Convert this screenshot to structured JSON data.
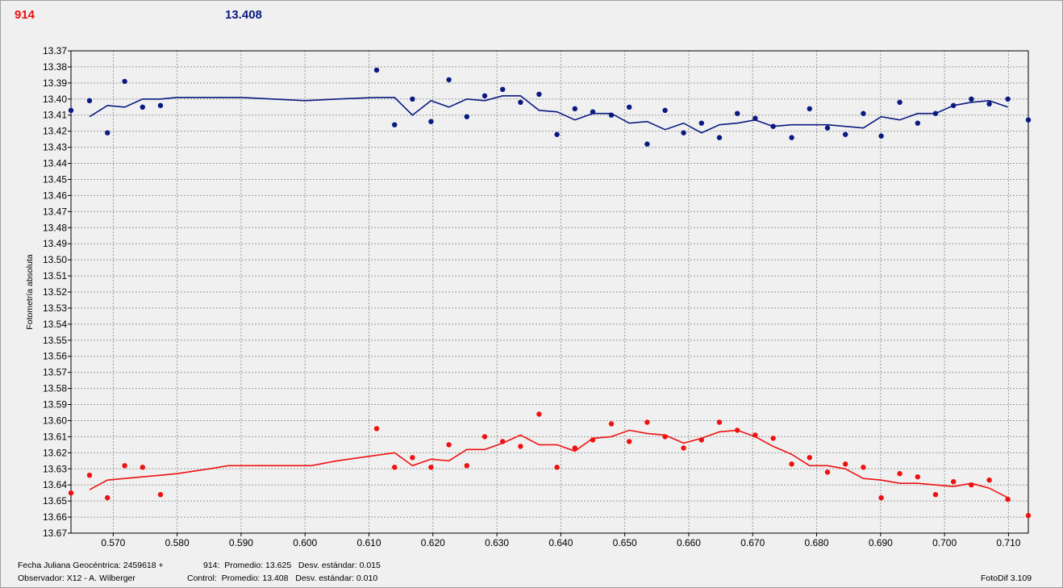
{
  "header": {
    "target_label": "914",
    "control_value": "13.408"
  },
  "footer": {
    "date_label": "Fecha Juliana Geocéntrica: 2459618 +",
    "observer_label": "Observador: X12 - A. Wilberger",
    "target_stats": "914:  Promedio: 13.625   Desv. estándar: 0.015",
    "control_stats": "Control:  Promedio: 13.408   Desv. estándar: 0.010",
    "software": "FotoDif 3.109"
  },
  "colors": {
    "target": "#ee1111",
    "control": "#0a1a80",
    "grid": "#9a9a9a",
    "plot_bg": "#f0f0f0"
  },
  "chart_data": {
    "type": "scatter",
    "ylabel": "Fotometría absoluta",
    "y_inverted": true,
    "ylim": [
      13.37,
      13.67
    ],
    "xlim": [
      0.5634,
      0.7131
    ],
    "x_ticks": [
      "0.570",
      "0.580",
      "0.590",
      "0.600",
      "0.610",
      "0.620",
      "0.630",
      "0.640",
      "0.650",
      "0.660",
      "0.670",
      "0.680",
      "0.690",
      "0.700",
      "0.710"
    ],
    "y_ticks": [
      "13.37",
      "13.38",
      "13.39",
      "13.40",
      "13.41",
      "13.42",
      "13.43",
      "13.44",
      "13.45",
      "13.46",
      "13.47",
      "13.48",
      "13.49",
      "13.50",
      "13.51",
      "13.52",
      "13.53",
      "13.54",
      "13.55",
      "13.56",
      "13.57",
      "13.58",
      "13.59",
      "13.60",
      "13.61",
      "13.62",
      "13.63",
      "13.64",
      "13.65",
      "13.66",
      "13.67"
    ],
    "grid": true,
    "series": [
      {
        "kind": "control",
        "points": [
          [
            0.5634,
            13.407
          ],
          [
            0.5663,
            13.401
          ],
          [
            0.5691,
            13.421
          ],
          [
            0.5718,
            13.389
          ],
          [
            0.5746,
            13.405
          ],
          [
            0.5774,
            13.404
          ],
          [
            0.6112,
            13.382
          ],
          [
            0.614,
            13.416
          ],
          [
            0.6168,
            13.4
          ],
          [
            0.6197,
            13.414
          ],
          [
            0.6225,
            13.388
          ],
          [
            0.6253,
            13.411
          ],
          [
            0.6281,
            13.398
          ],
          [
            0.6309,
            13.394
          ],
          [
            0.6337,
            13.402
          ],
          [
            0.6366,
            13.397
          ],
          [
            0.6394,
            13.422
          ],
          [
            0.6422,
            13.406
          ],
          [
            0.645,
            13.408
          ],
          [
            0.6479,
            13.41
          ],
          [
            0.6507,
            13.405
          ],
          [
            0.6535,
            13.428
          ],
          [
            0.6563,
            13.407
          ],
          [
            0.6592,
            13.421
          ],
          [
            0.662,
            13.415
          ],
          [
            0.6648,
            13.424
          ],
          [
            0.6676,
            13.409
          ],
          [
            0.6704,
            13.412
          ],
          [
            0.6732,
            13.417
          ],
          [
            0.6761,
            13.424
          ],
          [
            0.6789,
            13.406
          ],
          [
            0.6817,
            13.418
          ],
          [
            0.6845,
            13.422
          ],
          [
            0.6873,
            13.409
          ],
          [
            0.6901,
            13.423
          ],
          [
            0.693,
            13.402
          ],
          [
            0.6958,
            13.415
          ],
          [
            0.6986,
            13.409
          ],
          [
            0.7014,
            13.404
          ],
          [
            0.7042,
            13.4
          ],
          [
            0.707,
            13.403
          ],
          [
            0.7099,
            13.4
          ],
          [
            0.7131,
            13.413
          ]
        ],
        "trend": [
          [
            0.5663,
            13.411
          ],
          [
            0.5691,
            13.404
          ],
          [
            0.5718,
            13.405
          ],
          [
            0.5746,
            13.4
          ],
          [
            0.5774,
            13.4
          ],
          [
            0.58,
            13.399
          ],
          [
            0.585,
            13.399
          ],
          [
            0.59,
            13.399
          ],
          [
            0.6,
            13.401
          ],
          [
            0.605,
            13.4
          ],
          [
            0.6112,
            13.399
          ],
          [
            0.614,
            13.399
          ],
          [
            0.6168,
            13.41
          ],
          [
            0.6197,
            13.401
          ],
          [
            0.6225,
            13.405
          ],
          [
            0.6253,
            13.4
          ],
          [
            0.6281,
            13.401
          ],
          [
            0.6309,
            13.398
          ],
          [
            0.6337,
            13.398
          ],
          [
            0.6366,
            13.407
          ],
          [
            0.6394,
            13.408
          ],
          [
            0.6422,
            13.413
          ],
          [
            0.645,
            13.409
          ],
          [
            0.6479,
            13.409
          ],
          [
            0.6507,
            13.415
          ],
          [
            0.6535,
            13.414
          ],
          [
            0.6563,
            13.419
          ],
          [
            0.6592,
            13.415
          ],
          [
            0.662,
            13.421
          ],
          [
            0.6648,
            13.416
          ],
          [
            0.6676,
            13.415
          ],
          [
            0.6704,
            13.413
          ],
          [
            0.6732,
            13.417
          ],
          [
            0.6761,
            13.416
          ],
          [
            0.6789,
            13.416
          ],
          [
            0.6817,
            13.416
          ],
          [
            0.6845,
            13.417
          ],
          [
            0.6873,
            13.418
          ],
          [
            0.6901,
            13.411
          ],
          [
            0.693,
            13.413
          ],
          [
            0.6958,
            13.409
          ],
          [
            0.6986,
            13.409
          ],
          [
            0.7014,
            13.404
          ],
          [
            0.7042,
            13.402
          ],
          [
            0.707,
            13.401
          ],
          [
            0.7099,
            13.405
          ]
        ]
      },
      {
        "kind": "target",
        "points": [
          [
            0.5634,
            13.645
          ],
          [
            0.5663,
            13.634
          ],
          [
            0.5691,
            13.648
          ],
          [
            0.5718,
            13.628
          ],
          [
            0.5746,
            13.629
          ],
          [
            0.5774,
            13.646
          ],
          [
            0.6112,
            13.605
          ],
          [
            0.614,
            13.629
          ],
          [
            0.6168,
            13.623
          ],
          [
            0.6197,
            13.629
          ],
          [
            0.6225,
            13.615
          ],
          [
            0.6253,
            13.628
          ],
          [
            0.6281,
            13.61
          ],
          [
            0.6309,
            13.613
          ],
          [
            0.6337,
            13.616
          ],
          [
            0.6366,
            13.596
          ],
          [
            0.6394,
            13.629
          ],
          [
            0.6422,
            13.617
          ],
          [
            0.645,
            13.612
          ],
          [
            0.6479,
            13.602
          ],
          [
            0.6507,
            13.613
          ],
          [
            0.6535,
            13.601
          ],
          [
            0.6563,
            13.61
          ],
          [
            0.6592,
            13.617
          ],
          [
            0.662,
            13.612
          ],
          [
            0.6648,
            13.601
          ],
          [
            0.6676,
            13.606
          ],
          [
            0.6704,
            13.609
          ],
          [
            0.6732,
            13.611
          ],
          [
            0.6761,
            13.627
          ],
          [
            0.6789,
            13.623
          ],
          [
            0.6817,
            13.632
          ],
          [
            0.6845,
            13.627
          ],
          [
            0.6873,
            13.629
          ],
          [
            0.6901,
            13.648
          ],
          [
            0.693,
            13.633
          ],
          [
            0.6958,
            13.635
          ],
          [
            0.6986,
            13.646
          ],
          [
            0.7014,
            13.638
          ],
          [
            0.7042,
            13.64
          ],
          [
            0.707,
            13.637
          ],
          [
            0.7099,
            13.649
          ],
          [
            0.7131,
            13.659
          ]
        ],
        "trend": [
          [
            0.5663,
            13.643
          ],
          [
            0.5691,
            13.637
          ],
          [
            0.5746,
            13.635
          ],
          [
            0.5774,
            13.634
          ],
          [
            0.58,
            13.633
          ],
          [
            0.585,
            13.63
          ],
          [
            0.588,
            13.628
          ],
          [
            0.595,
            13.628
          ],
          [
            0.601,
            13.628
          ],
          [
            0.605,
            13.625
          ],
          [
            0.614,
            13.62
          ],
          [
            0.6168,
            13.628
          ],
          [
            0.6197,
            13.624
          ],
          [
            0.6225,
            13.625
          ],
          [
            0.6253,
            13.618
          ],
          [
            0.6281,
            13.618
          ],
          [
            0.6309,
            13.614
          ],
          [
            0.6337,
            13.609
          ],
          [
            0.6366,
            13.615
          ],
          [
            0.6394,
            13.615
          ],
          [
            0.6422,
            13.619
          ],
          [
            0.645,
            13.611
          ],
          [
            0.6479,
            13.61
          ],
          [
            0.6507,
            13.606
          ],
          [
            0.6535,
            13.608
          ],
          [
            0.6563,
            13.609
          ],
          [
            0.6592,
            13.614
          ],
          [
            0.662,
            13.611
          ],
          [
            0.6648,
            13.607
          ],
          [
            0.6676,
            13.606
          ],
          [
            0.6704,
            13.61
          ],
          [
            0.6732,
            13.616
          ],
          [
            0.6761,
            13.621
          ],
          [
            0.6789,
            13.628
          ],
          [
            0.6817,
            13.628
          ],
          [
            0.6845,
            13.63
          ],
          [
            0.6873,
            13.636
          ],
          [
            0.6901,
            13.637
          ],
          [
            0.693,
            13.639
          ],
          [
            0.6958,
            13.639
          ],
          [
            0.6986,
            13.64
          ],
          [
            0.7014,
            13.641
          ],
          [
            0.7042,
            13.639
          ],
          [
            0.707,
            13.642
          ],
          [
            0.7099,
            13.648
          ]
        ]
      }
    ]
  }
}
